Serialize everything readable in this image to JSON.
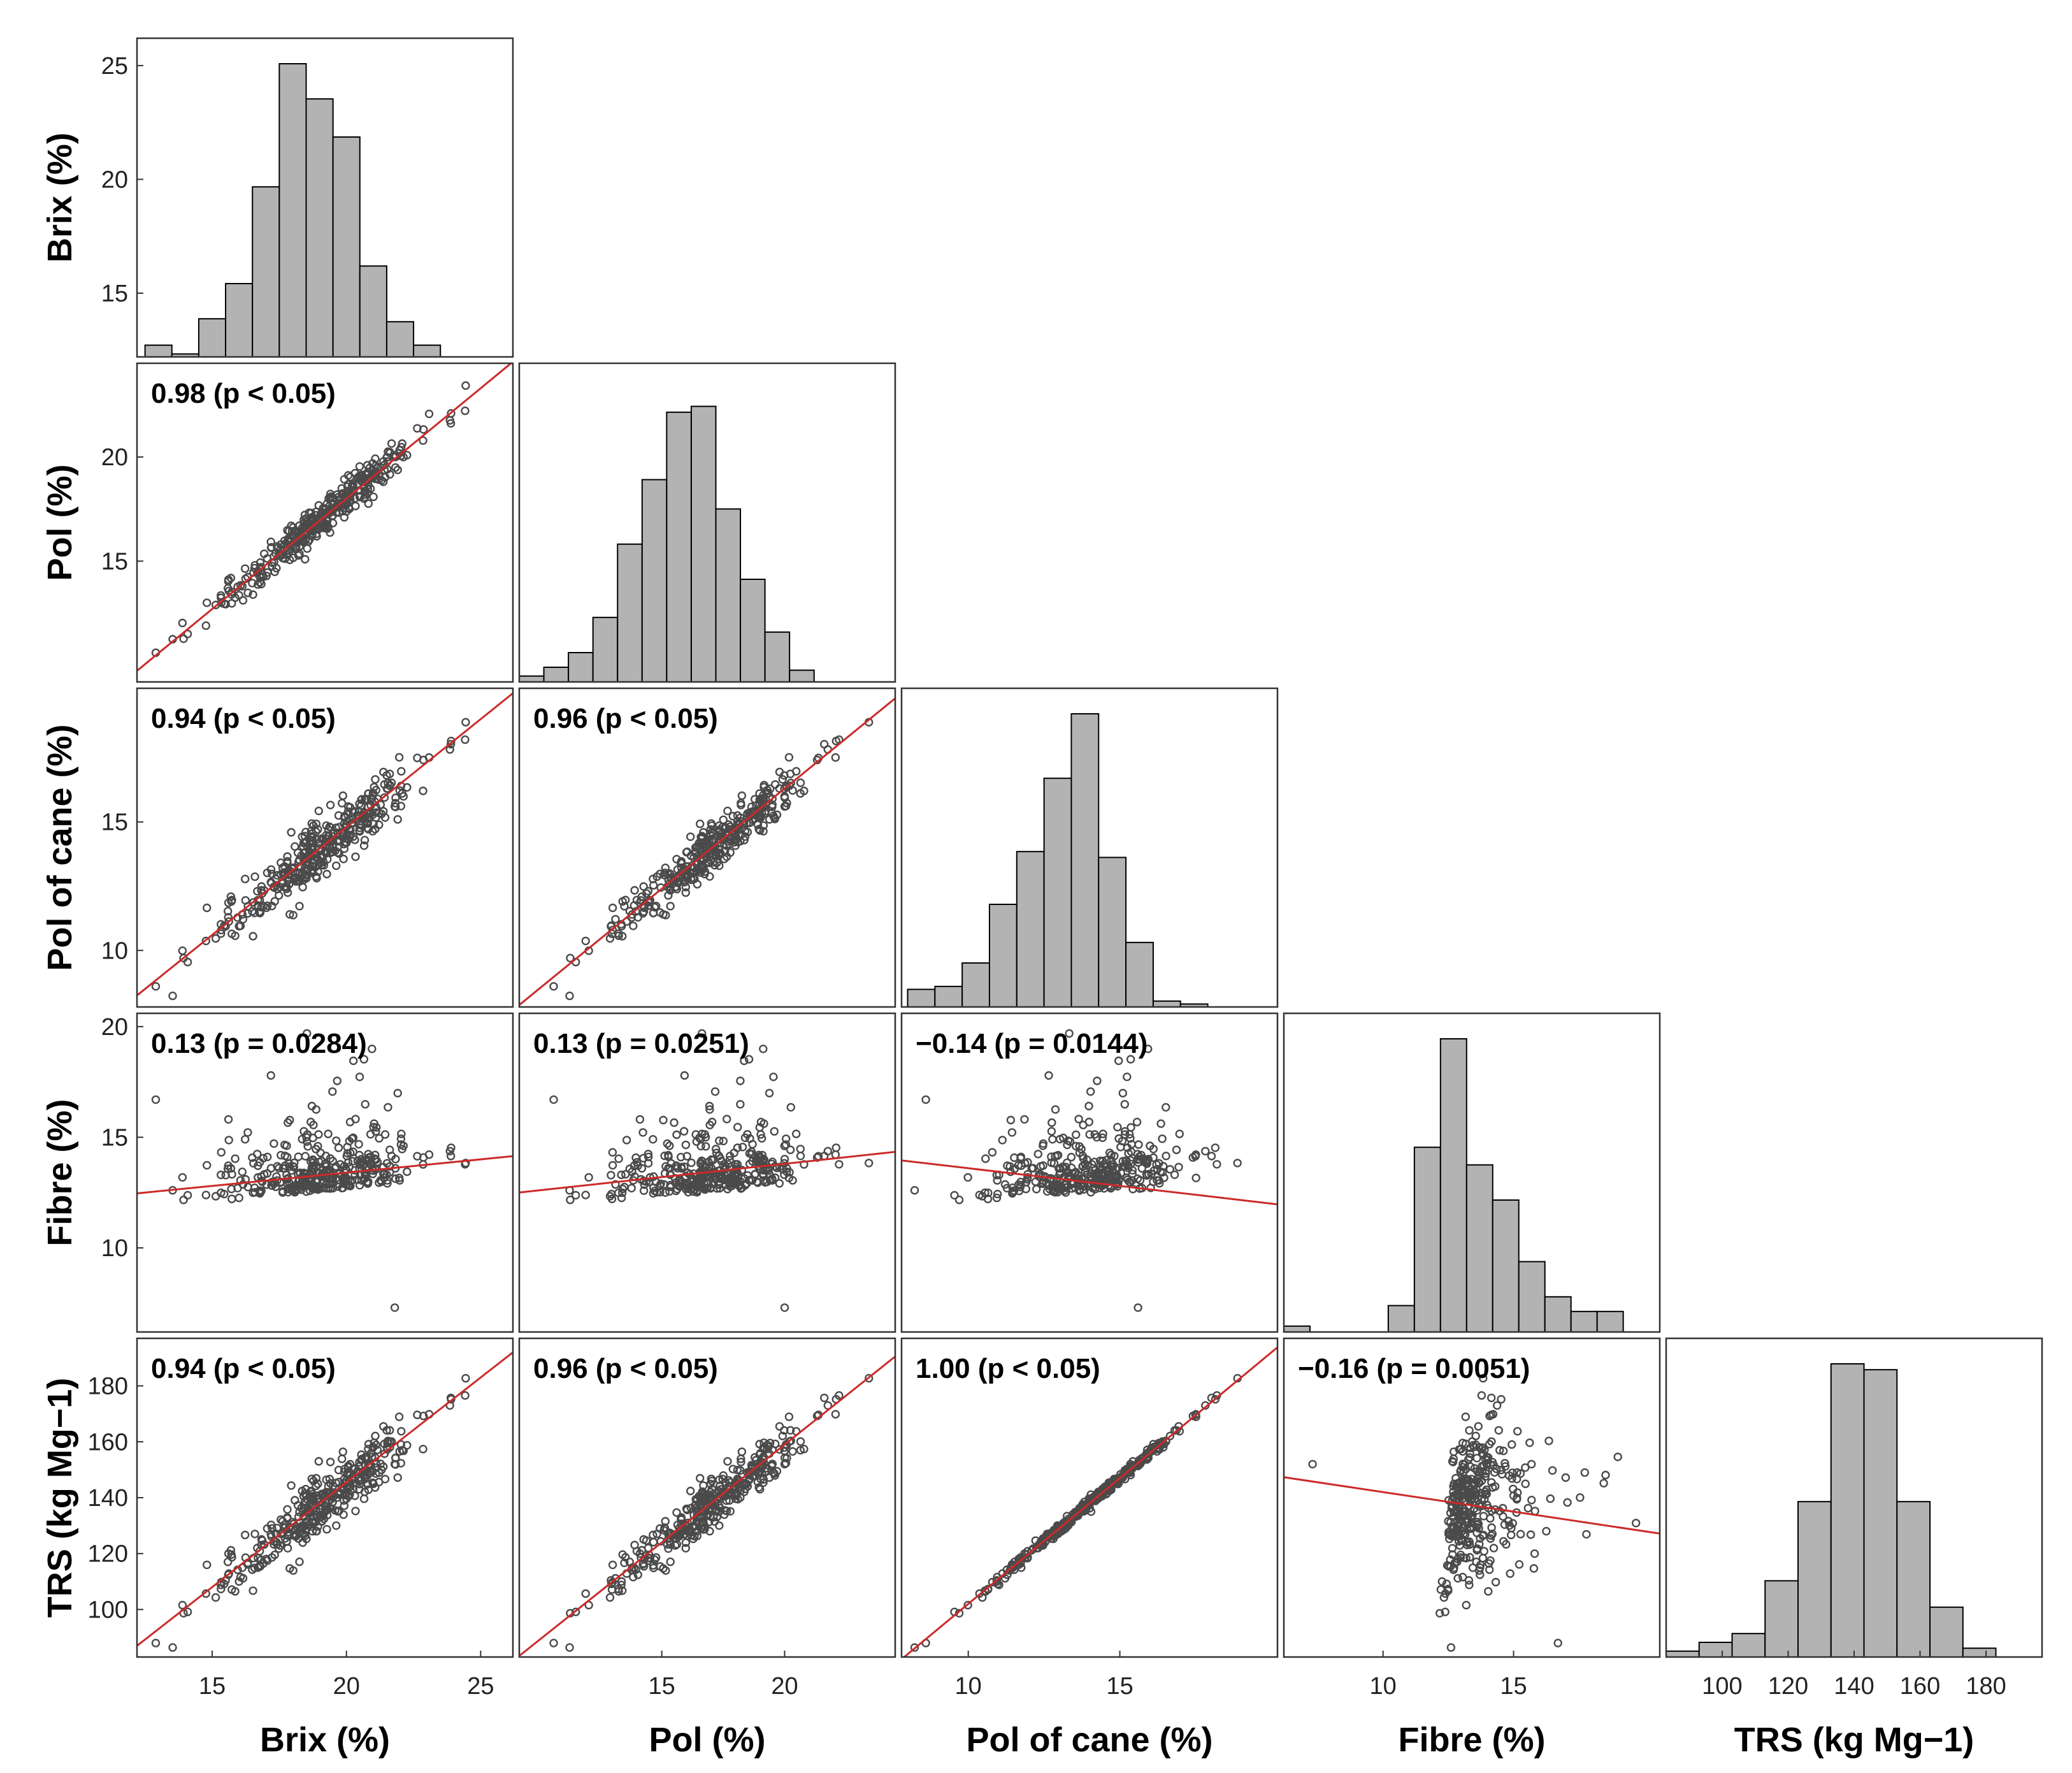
{
  "chart_data": {
    "type": "scatter-matrix",
    "title": "",
    "variables": [
      {
        "key": "brix",
        "label": "Brix (%)",
        "range": [
          12.2,
          26.2
        ],
        "ticks": [
          15,
          20,
          25
        ],
        "hist_ticks": [
          15,
          20,
          25
        ],
        "x_ticks": [
          15,
          20,
          25
        ],
        "mean": 19.0,
        "sd": 1.75
      },
      {
        "key": "pol",
        "label": "Pol (%)",
        "range": [
          9.2,
          24.5
        ],
        "ticks": [
          15,
          20
        ],
        "x_ticks": [
          15,
          20
        ],
        "mean": 17.0,
        "sd": 1.9
      },
      {
        "key": "polcane",
        "label": "Pol of cane (%)",
        "range": [
          7.8,
          20.2
        ],
        "ticks": [
          10,
          15
        ],
        "x_ticks": [
          10,
          15
        ],
        "mean": 14.0,
        "sd": 1.55
      },
      {
        "key": "fibre",
        "label": "Fibre (%)",
        "range": [
          6.2,
          20.6
        ],
        "ticks": [
          10,
          15,
          20
        ],
        "x_ticks": [
          10,
          15
        ],
        "mean": 13.0,
        "sd": 1.55
      },
      {
        "key": "trs",
        "label": "TRS (kg Mg−1)",
        "range": [
          83,
          197
        ],
        "ticks": [
          100,
          120,
          140,
          160,
          180
        ],
        "x_ticks": [
          100,
          120,
          140,
          160,
          180
        ],
        "mean": 138.0,
        "sd": 14.0
      }
    ],
    "histograms": [
      {
        "variable": "brix",
        "bin_edges": [
          12.5,
          13.5,
          14.5,
          15.5,
          16.5,
          17.5,
          18.5,
          19.5,
          20.5,
          21.5,
          22.5,
          23.5,
          24.5,
          25.5
        ],
        "counts": [
          0.04,
          0.01,
          0.13,
          0.25,
          0.58,
          1.0,
          0.88,
          0.75,
          0.31,
          0.12,
          0.04,
          0.0,
          0.0
        ]
      },
      {
        "variable": "pol",
        "bin_edges": [
          9.2,
          10.2,
          11.2,
          12.2,
          13.2,
          14.2,
          15.2,
          16.2,
          17.2,
          18.2,
          19.2,
          20.2,
          21.2,
          22.2,
          23.2,
          24.2
        ],
        "counts": [
          0.02,
          0.05,
          0.1,
          0.22,
          0.47,
          0.69,
          0.92,
          0.94,
          0.59,
          0.35,
          0.17,
          0.04,
          0.0,
          0.0,
          0.0
        ]
      },
      {
        "variable": "polcane",
        "bin_edges": [
          8.0,
          8.9,
          9.8,
          10.7,
          11.6,
          12.5,
          13.4,
          14.3,
          15.2,
          16.1,
          17.0,
          17.9,
          18.8,
          19.7
        ],
        "counts": [
          0.06,
          0.07,
          0.15,
          0.35,
          0.53,
          0.78,
          1.0,
          0.51,
          0.22,
          0.02,
          0.01,
          0.0,
          0.0
        ]
      },
      {
        "variable": "fibre",
        "bin_edges": [
          6.2,
          7.2,
          8.2,
          9.2,
          10.2,
          11.2,
          12.2,
          13.2,
          14.2,
          15.2,
          16.2,
          17.2,
          18.2,
          19.2,
          20.2
        ],
        "counts": [
          0.02,
          0.0,
          0.0,
          0.0,
          0.09,
          0.63,
          1.0,
          0.57,
          0.45,
          0.24,
          0.12,
          0.07,
          0.07,
          0.0
        ]
      },
      {
        "variable": "trs",
        "bin_edges": [
          83,
          93,
          103,
          113,
          123,
          133,
          143,
          153,
          163,
          173,
          183,
          193
        ],
        "counts": [
          0.02,
          0.05,
          0.08,
          0.26,
          0.53,
          1.0,
          0.98,
          0.53,
          0.17,
          0.03,
          0.0
        ]
      }
    ],
    "correlations": [
      {
        "row": "pol",
        "col": "brix",
        "r": 0.98,
        "label": "0.98 (p < 0.05)",
        "slope": 1.06,
        "intercept": -3.2
      },
      {
        "row": "polcane",
        "col": "brix",
        "r": 0.94,
        "label": "0.94 (p < 0.05)",
        "slope": 0.84,
        "intercept": -2.0
      },
      {
        "row": "polcane",
        "col": "pol",
        "r": 0.96,
        "label": "0.96 (p < 0.05)",
        "slope": 0.78,
        "intercept": 0.7
      },
      {
        "row": "fibre",
        "col": "brix",
        "r": 0.13,
        "label": "0.13 (p = 0.0284)",
        "slope": 0.12,
        "intercept": 11.0
      },
      {
        "row": "fibre",
        "col": "pol",
        "r": 0.13,
        "label": "0.13 (p = 0.0251)",
        "slope": 0.12,
        "intercept": 11.4
      },
      {
        "row": "fibre",
        "col": "polcane",
        "r": -0.14,
        "label": "−0.14 (p = 0.0144)",
        "slope": -0.16,
        "intercept": 15.2
      },
      {
        "row": "trs",
        "col": "brix",
        "r": 0.94,
        "label": "0.94 (p < 0.05)",
        "slope": 7.5,
        "intercept": -4.5
      },
      {
        "row": "trs",
        "col": "pol",
        "r": 0.96,
        "label": "0.96 (p < 0.05)",
        "slope": 7.0,
        "intercept": 19.0
      },
      {
        "row": "trs",
        "col": "polcane",
        "r": 1.0,
        "label": "1.00 (p < 0.05)",
        "slope": 9.0,
        "intercept": 12.0
      },
      {
        "row": "trs",
        "col": "fibre",
        "r": -0.16,
        "label": "−0.16 (p = 0.0051)",
        "slope": -1.4,
        "intercept": 156.0
      }
    ],
    "n_points": 360,
    "style": {
      "bar_fill": "#b3b3b3",
      "bar_edge": "#000000",
      "point_color": "#4a4a4a",
      "fit_line": "#cc2a2a"
    }
  }
}
